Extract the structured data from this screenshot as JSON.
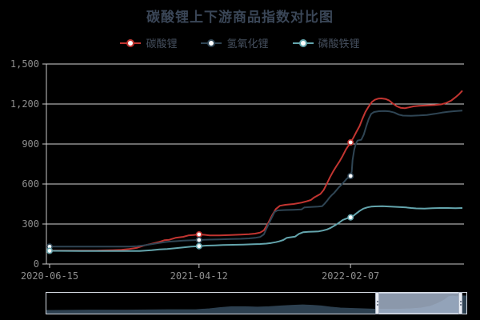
{
  "title": "碳酸锂上下游商品指数对比图",
  "legend": {
    "items": [
      {
        "label": "碳酸锂"
      },
      {
        "label": "氢氧化锂"
      },
      {
        "label": "磷酸铁锂"
      }
    ]
  },
  "chart_data": {
    "type": "line",
    "title": "碳酸锂上下游商品指数对比图",
    "xlabel": "",
    "ylabel": "",
    "ylim": [
      0,
      1500
    ],
    "grid": "horizontal-only",
    "legend_position": "top-center",
    "x_axis": {
      "ticks": [
        {
          "t": 0.0,
          "label": "2020-06-15"
        },
        {
          "t": 0.362,
          "label": "2021-04-12"
        },
        {
          "t": 0.729,
          "label": "2022-02-07"
        }
      ]
    },
    "y_axis": {
      "ticks": [
        {
          "value": 0,
          "label": "0"
        },
        {
          "value": 300,
          "label": "300"
        },
        {
          "value": 600,
          "label": "600"
        },
        {
          "value": 900,
          "label": "900"
        },
        {
          "value": 1200,
          "label": "1,200"
        },
        {
          "value": 1500,
          "label": "1,500"
        }
      ]
    },
    "series": [
      {
        "id": "lithium-carbonate",
        "name": "碳酸锂",
        "color": "#c23531",
        "points": [
          [
            0,
            100
          ],
          [
            0.054,
            100
          ],
          [
            0.112,
            101
          ],
          [
            0.151,
            103
          ],
          [
            0.174,
            106
          ],
          [
            0.193,
            113
          ],
          [
            0.212,
            122
          ],
          [
            0.228,
            138
          ],
          [
            0.247,
            152
          ],
          [
            0.266,
            166
          ],
          [
            0.278,
            178
          ],
          [
            0.29,
            182
          ],
          [
            0.305,
            196
          ],
          [
            0.324,
            204
          ],
          [
            0.336,
            214
          ],
          [
            0.349,
            218
          ],
          [
            0.362,
            222
          ],
          [
            0.375,
            219
          ],
          [
            0.388,
            214
          ],
          [
            0.411,
            215
          ],
          [
            0.44,
            217
          ],
          [
            0.463,
            220
          ],
          [
            0.483,
            223
          ],
          [
            0.498,
            228
          ],
          [
            0.51,
            236
          ],
          [
            0.519,
            252
          ],
          [
            0.529,
            305
          ],
          [
            0.539,
            365
          ],
          [
            0.548,
            412
          ],
          [
            0.558,
            437
          ],
          [
            0.571,
            444
          ],
          [
            0.591,
            450
          ],
          [
            0.61,
            460
          ],
          [
            0.622,
            470
          ],
          [
            0.633,
            480
          ],
          [
            0.641,
            500
          ],
          [
            0.649,
            513
          ],
          [
            0.656,
            525
          ],
          [
            0.664,
            555
          ],
          [
            0.672,
            605
          ],
          [
            0.679,
            650
          ],
          [
            0.687,
            695
          ],
          [
            0.695,
            735
          ],
          [
            0.703,
            772
          ],
          [
            0.71,
            812
          ],
          [
            0.718,
            860
          ],
          [
            0.729,
            912
          ],
          [
            0.736,
            948
          ],
          [
            0.743,
            990
          ],
          [
            0.751,
            1035
          ],
          [
            0.758,
            1090
          ],
          [
            0.765,
            1140
          ],
          [
            0.773,
            1182
          ],
          [
            0.781,
            1216
          ],
          [
            0.788,
            1232
          ],
          [
            0.796,
            1240
          ],
          [
            0.804,
            1242
          ],
          [
            0.814,
            1238
          ],
          [
            0.823,
            1226
          ],
          [
            0.831,
            1205
          ],
          [
            0.841,
            1183
          ],
          [
            0.85,
            1172
          ],
          [
            0.86,
            1168
          ],
          [
            0.87,
            1174
          ],
          [
            0.881,
            1182
          ],
          [
            0.895,
            1186
          ],
          [
            0.914,
            1189
          ],
          [
            0.933,
            1192
          ],
          [
            0.948,
            1197
          ],
          [
            0.961,
            1208
          ],
          [
            0.973,
            1226
          ],
          [
            0.983,
            1250
          ],
          [
            0.992,
            1274
          ],
          [
            1,
            1300
          ]
        ]
      },
      {
        "id": "lithium-hydroxide",
        "name": "氢氧化锂",
        "color": "#2f4554",
        "points": [
          [
            0,
            130
          ],
          [
            0.077,
            130
          ],
          [
            0.151,
            130
          ],
          [
            0.193,
            131
          ],
          [
            0.212,
            134
          ],
          [
            0.228,
            139
          ],
          [
            0.247,
            148
          ],
          [
            0.266,
            158
          ],
          [
            0.278,
            163
          ],
          [
            0.29,
            168
          ],
          [
            0.305,
            171
          ],
          [
            0.324,
            175
          ],
          [
            0.349,
            178
          ],
          [
            0.362,
            180
          ],
          [
            0.388,
            183
          ],
          [
            0.411,
            185
          ],
          [
            0.44,
            187
          ],
          [
            0.463,
            189
          ],
          [
            0.483,
            192
          ],
          [
            0.498,
            196
          ],
          [
            0.51,
            203
          ],
          [
            0.519,
            222
          ],
          [
            0.529,
            290
          ],
          [
            0.539,
            352
          ],
          [
            0.545,
            390
          ],
          [
            0.552,
            402
          ],
          [
            0.571,
            405
          ],
          [
            0.591,
            407
          ],
          [
            0.61,
            409
          ],
          [
            0.617,
            424
          ],
          [
            0.633,
            427
          ],
          [
            0.65,
            430
          ],
          [
            0.66,
            433
          ],
          [
            0.666,
            452
          ],
          [
            0.672,
            474
          ],
          [
            0.678,
            498
          ],
          [
            0.683,
            515
          ],
          [
            0.689,
            532
          ],
          [
            0.695,
            554
          ],
          [
            0.701,
            576
          ],
          [
            0.708,
            598
          ],
          [
            0.714,
            618
          ],
          [
            0.72,
            640
          ],
          [
            0.729,
            660
          ],
          [
            0.732,
            695
          ],
          [
            0.734,
            780
          ],
          [
            0.738,
            858
          ],
          [
            0.742,
            902
          ],
          [
            0.746,
            926
          ],
          [
            0.755,
            932
          ],
          [
            0.761,
            970
          ],
          [
            0.767,
            1032
          ],
          [
            0.773,
            1088
          ],
          [
            0.779,
            1126
          ],
          [
            0.786,
            1140
          ],
          [
            0.798,
            1146
          ],
          [
            0.812,
            1148
          ],
          [
            0.824,
            1144
          ],
          [
            0.835,
            1136
          ],
          [
            0.846,
            1120
          ],
          [
            0.856,
            1113
          ],
          [
            0.876,
            1112
          ],
          [
            0.896,
            1114
          ],
          [
            0.914,
            1118
          ],
          [
            0.933,
            1126
          ],
          [
            0.95,
            1135
          ],
          [
            0.965,
            1142
          ],
          [
            0.98,
            1146
          ],
          [
            1,
            1150
          ]
        ]
      },
      {
        "id": "lithium-iron-phosphate",
        "name": "磷酸铁锂",
        "color": "#64a5ad",
        "points": [
          [
            0,
            99
          ],
          [
            0.077,
            98
          ],
          [
            0.151,
            97
          ],
          [
            0.193,
            97
          ],
          [
            0.218,
            98
          ],
          [
            0.247,
            104
          ],
          [
            0.266,
            109
          ],
          [
            0.285,
            113
          ],
          [
            0.305,
            119
          ],
          [
            0.324,
            125
          ],
          [
            0.343,
            130
          ],
          [
            0.362,
            134
          ],
          [
            0.38,
            138
          ],
          [
            0.4,
            140
          ],
          [
            0.42,
            142
          ],
          [
            0.444,
            144
          ],
          [
            0.469,
            146
          ],
          [
            0.494,
            148
          ],
          [
            0.51,
            150
          ],
          [
            0.525,
            153
          ],
          [
            0.537,
            158
          ],
          [
            0.548,
            164
          ],
          [
            0.556,
            170
          ],
          [
            0.566,
            180
          ],
          [
            0.575,
            197
          ],
          [
            0.585,
            201
          ],
          [
            0.595,
            206
          ],
          [
            0.604,
            226
          ],
          [
            0.614,
            238
          ],
          [
            0.627,
            241
          ],
          [
            0.641,
            243
          ],
          [
            0.652,
            245
          ],
          [
            0.662,
            251
          ],
          [
            0.672,
            259
          ],
          [
            0.681,
            271
          ],
          [
            0.691,
            289
          ],
          [
            0.7,
            307
          ],
          [
            0.71,
            330
          ],
          [
            0.719,
            341
          ],
          [
            0.729,
            350
          ],
          [
            0.736,
            362
          ],
          [
            0.743,
            379
          ],
          [
            0.751,
            398
          ],
          [
            0.76,
            415
          ],
          [
            0.77,
            425
          ],
          [
            0.779,
            430
          ],
          [
            0.788,
            432
          ],
          [
            0.806,
            433
          ],
          [
            0.826,
            431
          ],
          [
            0.845,
            428
          ],
          [
            0.864,
            424
          ],
          [
            0.876,
            420
          ],
          [
            0.888,
            417
          ],
          [
            0.908,
            416
          ],
          [
            0.927,
            418
          ],
          [
            0.946,
            420
          ],
          [
            0.965,
            420
          ],
          [
            0.983,
            419
          ],
          [
            1,
            420
          ]
        ]
      }
    ],
    "markers": [
      {
        "t": 0.0,
        "values": [
          100,
          130,
          99
        ]
      },
      {
        "t": 0.362,
        "values": [
          222,
          180,
          134
        ]
      },
      {
        "t": 0.729,
        "values": [
          912,
          660,
          350
        ]
      }
    ],
    "style": {
      "background": "#000000",
      "grid_color": "#d6d6d6",
      "axis_color": "#c9c9c9",
      "label_color": "#8e8e8e",
      "title_color": "#3a4657",
      "legend_text_color": "#454f5e"
    }
  },
  "navigator": {
    "points": [
      [
        0,
        0.15
      ],
      [
        0.1,
        0.17
      ],
      [
        0.19,
        0.17
      ],
      [
        0.29,
        0.19
      ],
      [
        0.355,
        0.19
      ],
      [
        0.388,
        0.23
      ],
      [
        0.414,
        0.29
      ],
      [
        0.441,
        0.33
      ],
      [
        0.473,
        0.33
      ],
      [
        0.502,
        0.31
      ],
      [
        0.53,
        0.33
      ],
      [
        0.559,
        0.37
      ],
      [
        0.586,
        0.4
      ],
      [
        0.61,
        0.42
      ],
      [
        0.633,
        0.4
      ],
      [
        0.654,
        0.37
      ],
      [
        0.677,
        0.31
      ],
      [
        0.7,
        0.27
      ],
      [
        0.726,
        0.25
      ],
      [
        0.755,
        0.23
      ],
      [
        0.783,
        0.21
      ],
      [
        0.814,
        0.21
      ],
      [
        0.84,
        0.21
      ],
      [
        0.867,
        0.23
      ],
      [
        0.892,
        0.27
      ],
      [
        0.914,
        0.35
      ],
      [
        0.933,
        0.5
      ],
      [
        0.947,
        0.65
      ],
      [
        0.958,
        0.81
      ],
      [
        0.968,
        0.85
      ],
      [
        0.975,
        0.81
      ],
      [
        0.983,
        0.83
      ],
      [
        0.992,
        0.85
      ],
      [
        1,
        0.85
      ]
    ],
    "window": {
      "start": 0.787,
      "end": 0.987
    },
    "colors": {
      "area": "#2d4050",
      "window_fill": "rgba(170,185,209,0.82)",
      "border": "#d4d9e1",
      "handle": "#e9edf4",
      "handle_dots": "#7d8798"
    }
  }
}
